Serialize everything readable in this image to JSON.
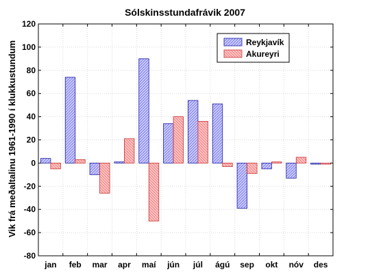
{
  "chart_data": {
    "type": "bar",
    "title": "Sólskinsstundafrávik 2007",
    "xlabel": "",
    "ylabel": "Vik frá meðaltalinu 1961-1990 í klukkustundum",
    "categories": [
      "jan",
      "feb",
      "mar",
      "apr",
      "maí",
      "jún",
      "júl",
      "ágú",
      "sep",
      "okt",
      "nóv",
      "des"
    ],
    "ylim": [
      -80,
      120
    ],
    "yticks": [
      -80,
      -60,
      -40,
      -20,
      0,
      20,
      40,
      60,
      80,
      100,
      120
    ],
    "grid": true,
    "legend_position": "top-right",
    "series": [
      {
        "name": "Reykjavík",
        "color": "#c8c8ff",
        "edge": "#1a1aa0",
        "values": [
          4,
          74,
          -10,
          1,
          90,
          34,
          54,
          51,
          -39,
          -5,
          -13,
          -1
        ]
      },
      {
        "name": "Akureyri",
        "color": "#ffc0c0",
        "edge": "#c83232",
        "values": [
          -5,
          3,
          -26,
          21,
          -50,
          40,
          36,
          -3,
          -9,
          1,
          5,
          -1
        ]
      }
    ]
  }
}
